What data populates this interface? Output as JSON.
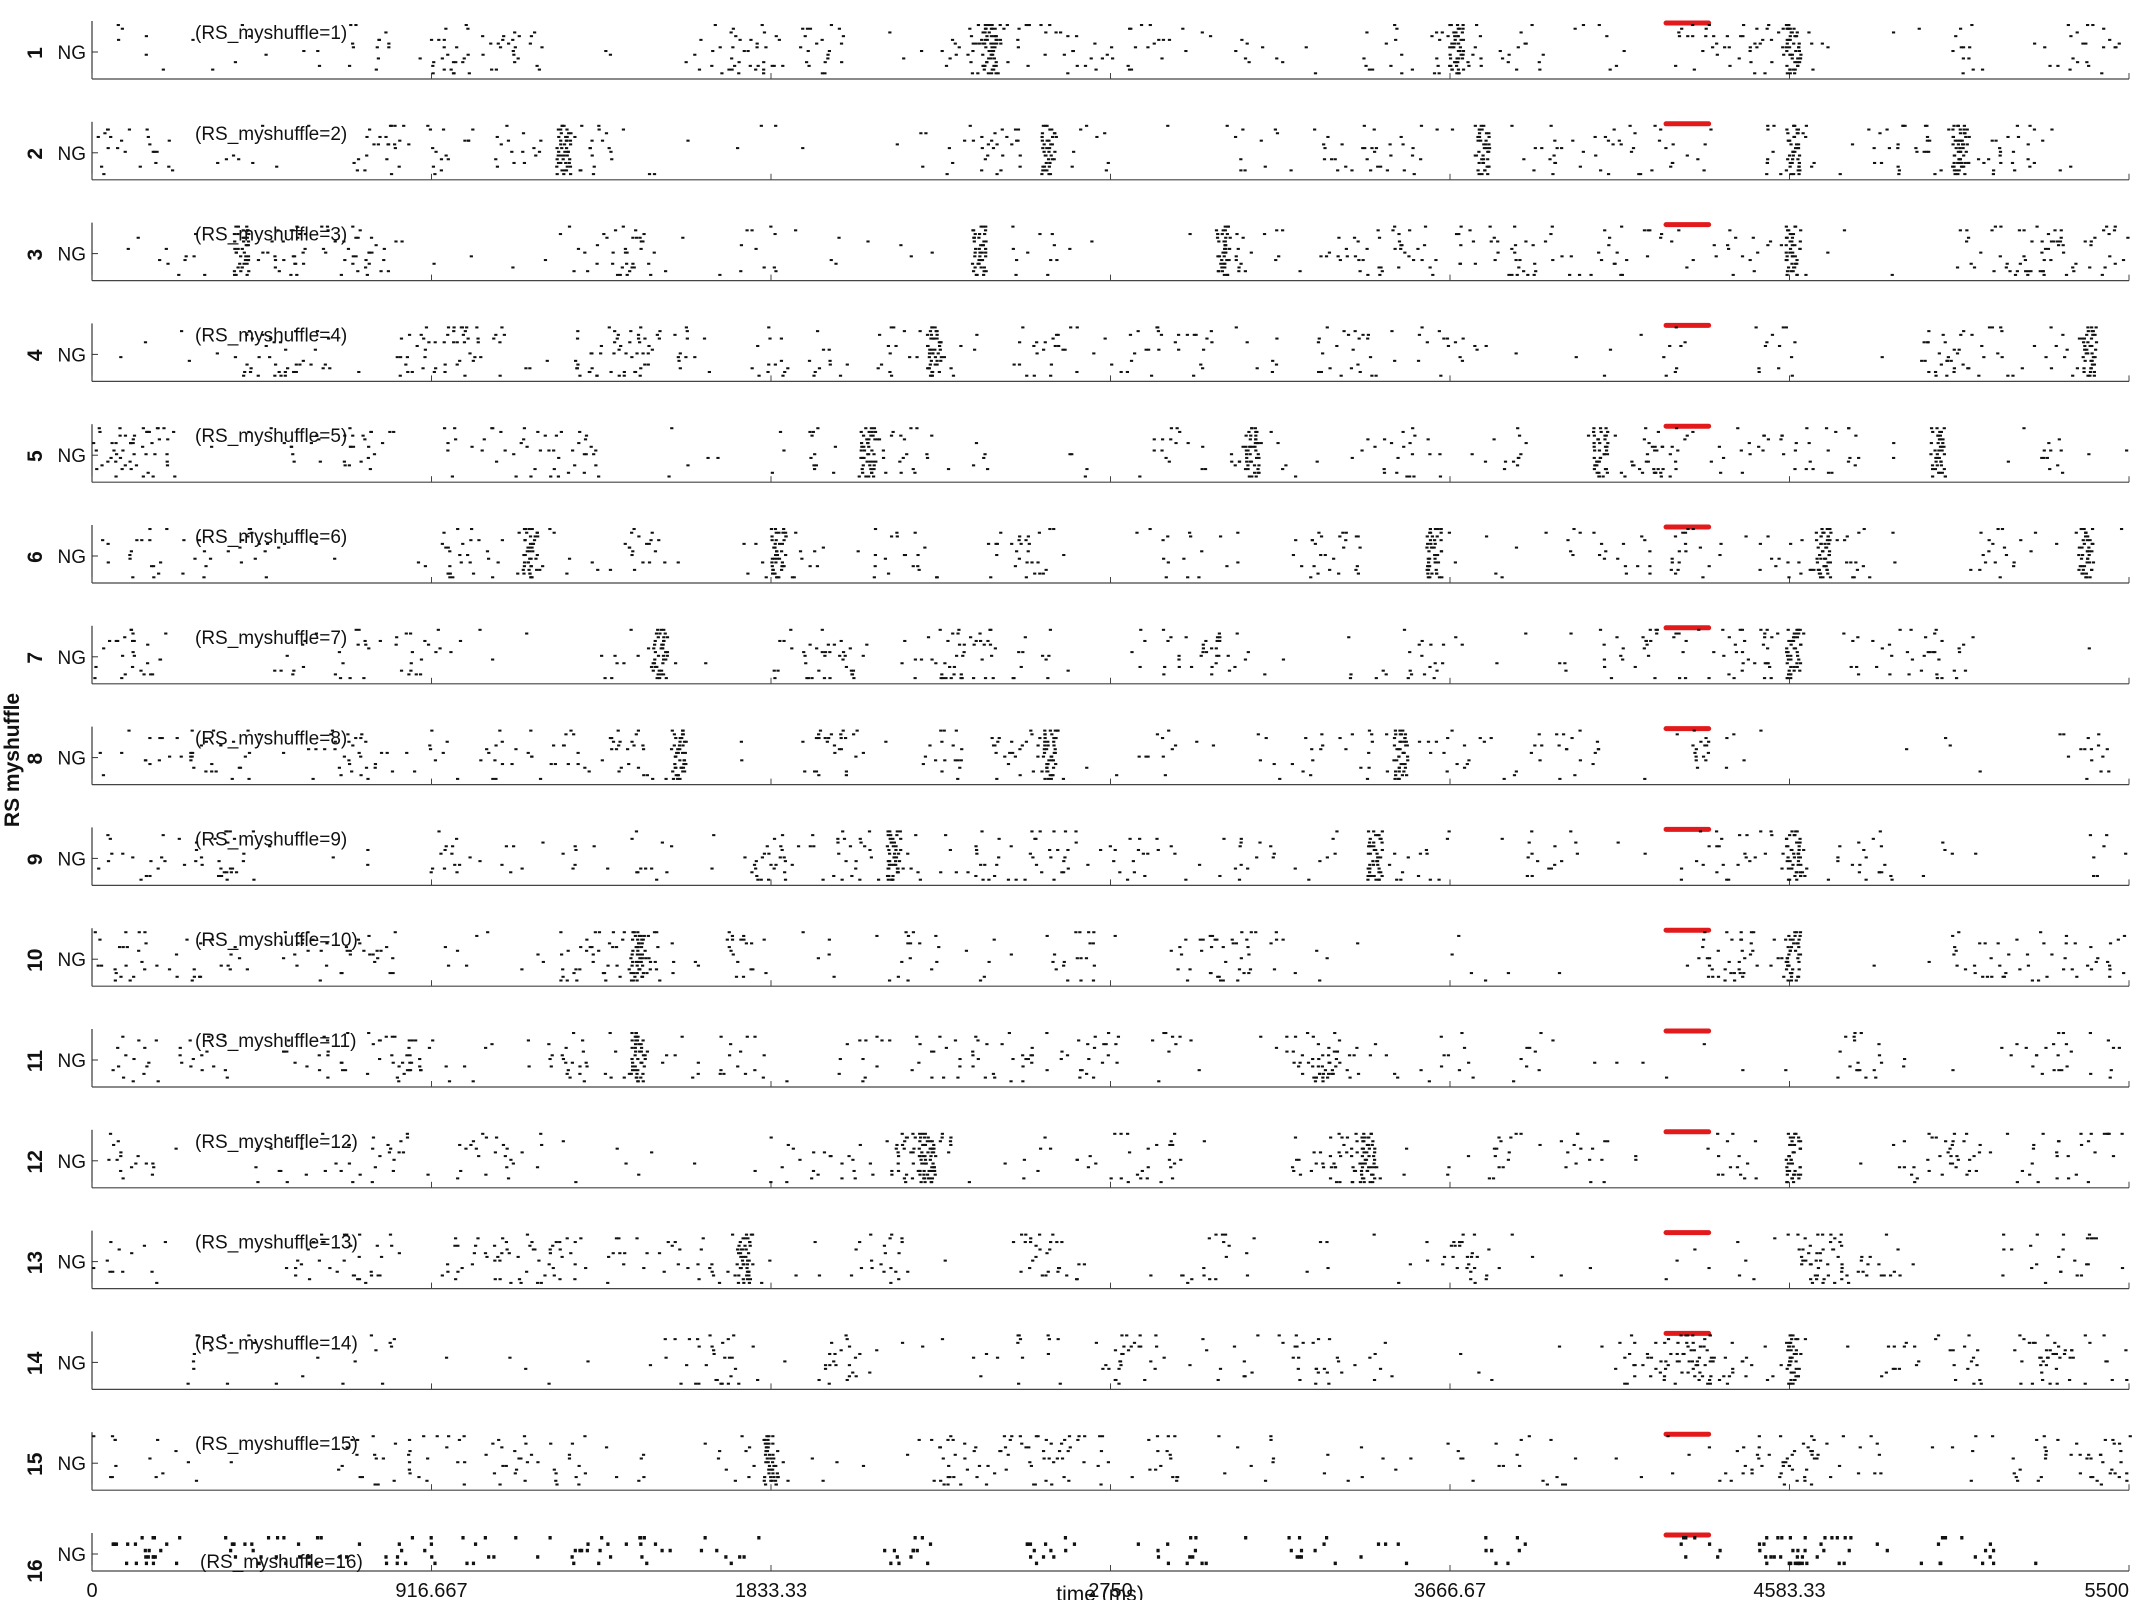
{
  "chart_data": {
    "type": "raster",
    "ylabel": "RS myshuffle",
    "xlabel": "time (ms)",
    "xlim": [
      0,
      5500
    ],
    "xticks": [
      0,
      916.667,
      1833.33,
      2750,
      3666.67,
      4583.33,
      5500
    ],
    "xtick_labels": [
      "0",
      "916.667",
      "1833.33",
      "2750",
      "3666.67",
      "4583.33",
      "5500"
    ],
    "population_label": "NG",
    "stimulus_marker": {
      "x_range": [
        4250,
        4365
      ],
      "color": "#e31a1c"
    },
    "spike_color": "#111111",
    "panels": [
      {
        "index": "1",
        "title": "(RS_myshuffle=1)",
        "bursts": [
          2420,
          4590,
          3680
        ]
      },
      {
        "index": "2",
        "title": "(RS_myshuffle=2)",
        "bursts": [
          1270,
          2580,
          3750,
          4590,
          5040
        ]
      },
      {
        "index": "3",
        "title": "(RS_myshuffle=3)",
        "bursts": [
          400,
          2390,
          3050,
          4590
        ]
      },
      {
        "index": "4",
        "title": "(RS_myshuffle=4)",
        "bursts": [
          2270,
          5390
        ]
      },
      {
        "index": "5",
        "title": "(RS_myshuffle=5)",
        "bursts": [
          2090,
          3130,
          4070,
          4980
        ]
      },
      {
        "index": "6",
        "title": "(RS_myshuffle=6)",
        "bursts": [
          1180,
          1850,
          3620,
          4670,
          5380
        ]
      },
      {
        "index": "7",
        "title": "(RS_myshuffle=7)",
        "bursts": [
          1530,
          4590
        ]
      },
      {
        "index": "8",
        "title": "(RS_myshuffle=8)",
        "bursts": [
          1580,
          2580,
          3530
        ]
      },
      {
        "index": "9",
        "title": "(RS_myshuffle=9)",
        "bursts": [
          2160,
          3460,
          4590
        ]
      },
      {
        "index": "10",
        "title": "(RS_myshuffle=10)",
        "bursts": [
          1470,
          4590
        ]
      },
      {
        "index": "11",
        "title": "(RS_myshuffle=11)",
        "bursts": [
          1470
        ]
      },
      {
        "index": "12",
        "title": "(RS_myshuffle=12)",
        "bursts": [
          2250,
          3440,
          4590
        ]
      },
      {
        "index": "13",
        "title": "(RS_myshuffle=13)",
        "bursts": [
          1760
        ]
      },
      {
        "index": "14",
        "title": "(RS_myshuffle=14)",
        "bursts": [
          4590
        ]
      },
      {
        "index": "15",
        "title": "(RS_myshuffle=15)",
        "bursts": [
          1830
        ]
      },
      {
        "index": "16",
        "title": "(RS_myshuffle=16)",
        "bursts": []
      }
    ]
  }
}
